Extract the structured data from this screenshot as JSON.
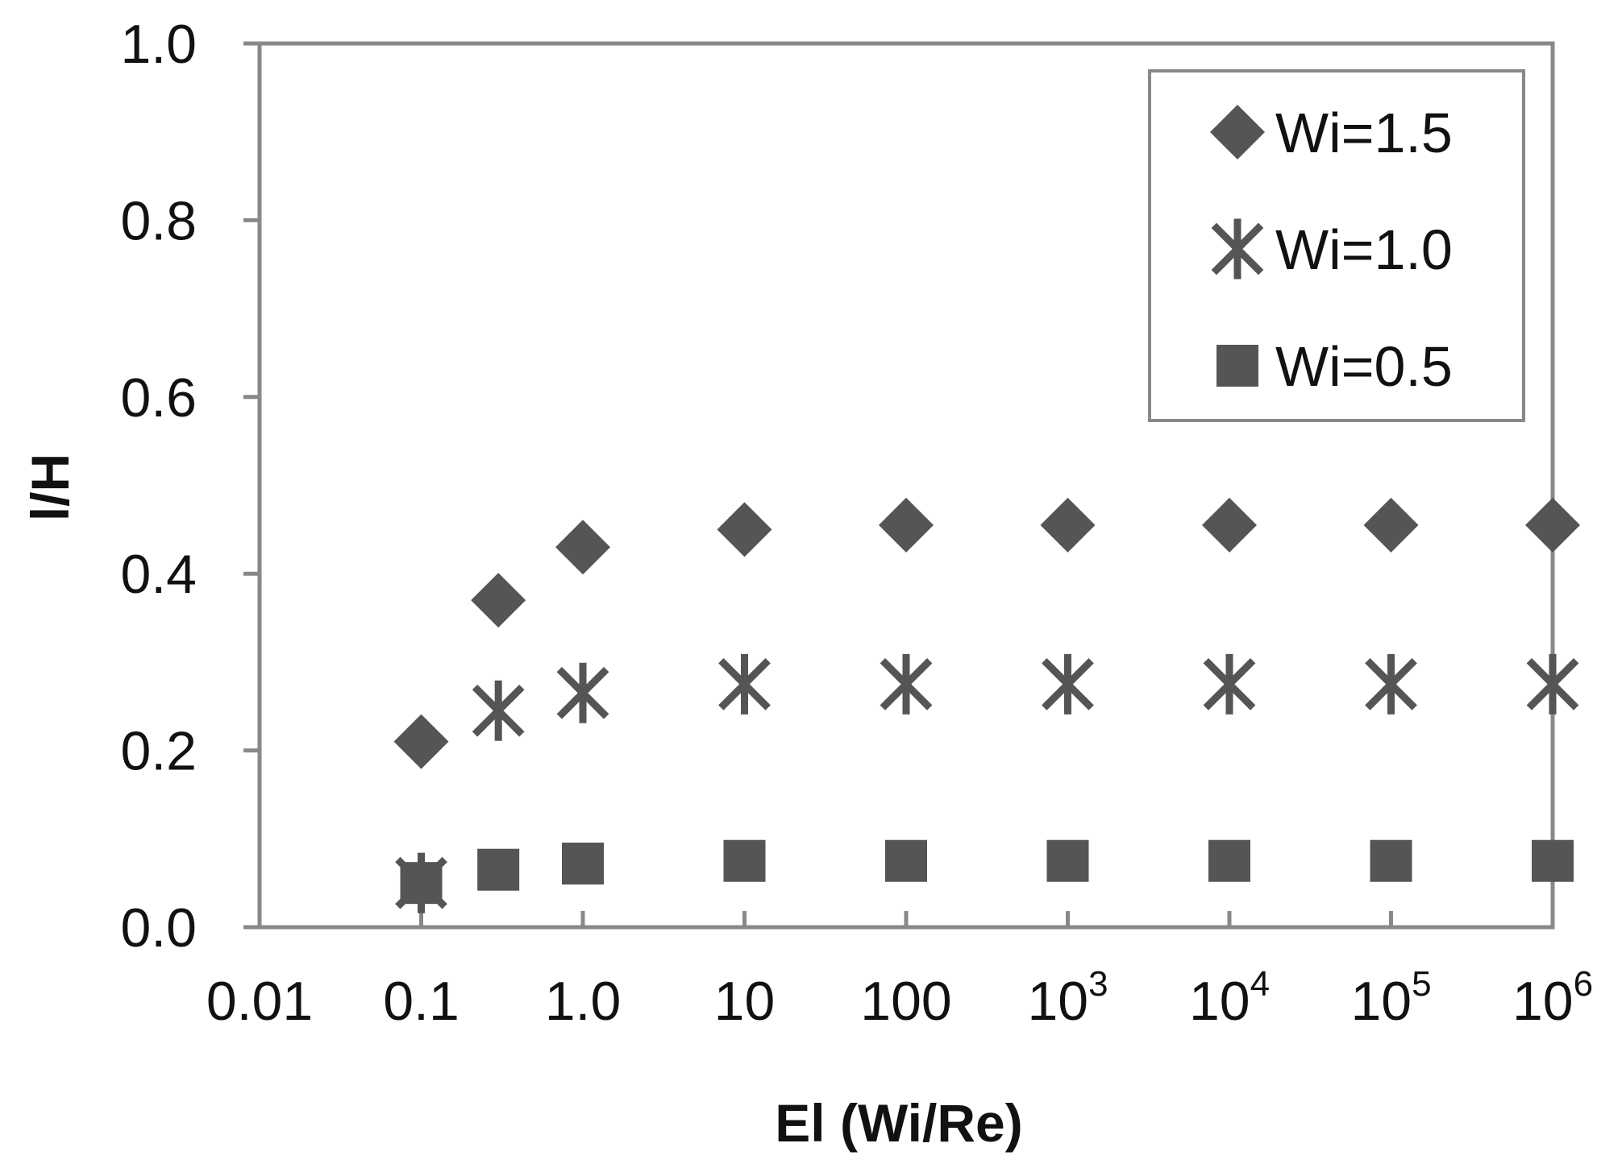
{
  "chart_data": {
    "type": "scatter",
    "xlabel": "El (Wi/Re)",
    "ylabel": "l/H",
    "x_scale": "log",
    "xlim": [
      0.01,
      1000000
    ],
    "ylim": [
      0.0,
      1.0
    ],
    "x_ticks": [
      {
        "value": 0.01,
        "base": "0.01",
        "exp": ""
      },
      {
        "value": 0.1,
        "base": "0.1",
        "exp": ""
      },
      {
        "value": 1,
        "base": "1.0",
        "exp": ""
      },
      {
        "value": 10,
        "base": "10",
        "exp": ""
      },
      {
        "value": 100,
        "base": "100",
        "exp": ""
      },
      {
        "value": 1000,
        "base": "10",
        "exp": "3"
      },
      {
        "value": 10000,
        "base": "10",
        "exp": "4"
      },
      {
        "value": 100000,
        "base": "10",
        "exp": "5"
      },
      {
        "value": 1000000,
        "base": "10",
        "exp": "6"
      }
    ],
    "y_ticks": [
      "0.0",
      "0.2",
      "0.4",
      "0.6",
      "0.8",
      "1.0"
    ],
    "grid": false,
    "legend_position": "top-right",
    "series": [
      {
        "name": "Wi=1.5",
        "marker": "diamond",
        "color": "#555555",
        "x": [
          0.1,
          0.3,
          1,
          10,
          100,
          1000,
          10000,
          100000,
          1000000
        ],
        "y": [
          0.21,
          0.37,
          0.43,
          0.45,
          0.455,
          0.455,
          0.455,
          0.455,
          0.455
        ]
      },
      {
        "name": "Wi=1.0",
        "marker": "asterisk",
        "color": "#555555",
        "x": [
          0.1,
          0.3,
          1,
          10,
          100,
          1000,
          10000,
          100000,
          1000000
        ],
        "y": [
          0.05,
          0.245,
          0.265,
          0.275,
          0.275,
          0.275,
          0.275,
          0.275,
          0.275
        ]
      },
      {
        "name": "Wi=0.5",
        "marker": "square",
        "color": "#555555",
        "x": [
          0.1,
          0.3,
          1,
          10,
          100,
          1000,
          10000,
          100000,
          1000000
        ],
        "y": [
          0.05,
          0.065,
          0.072,
          0.075,
          0.075,
          0.075,
          0.075,
          0.075,
          0.075
        ]
      }
    ]
  }
}
